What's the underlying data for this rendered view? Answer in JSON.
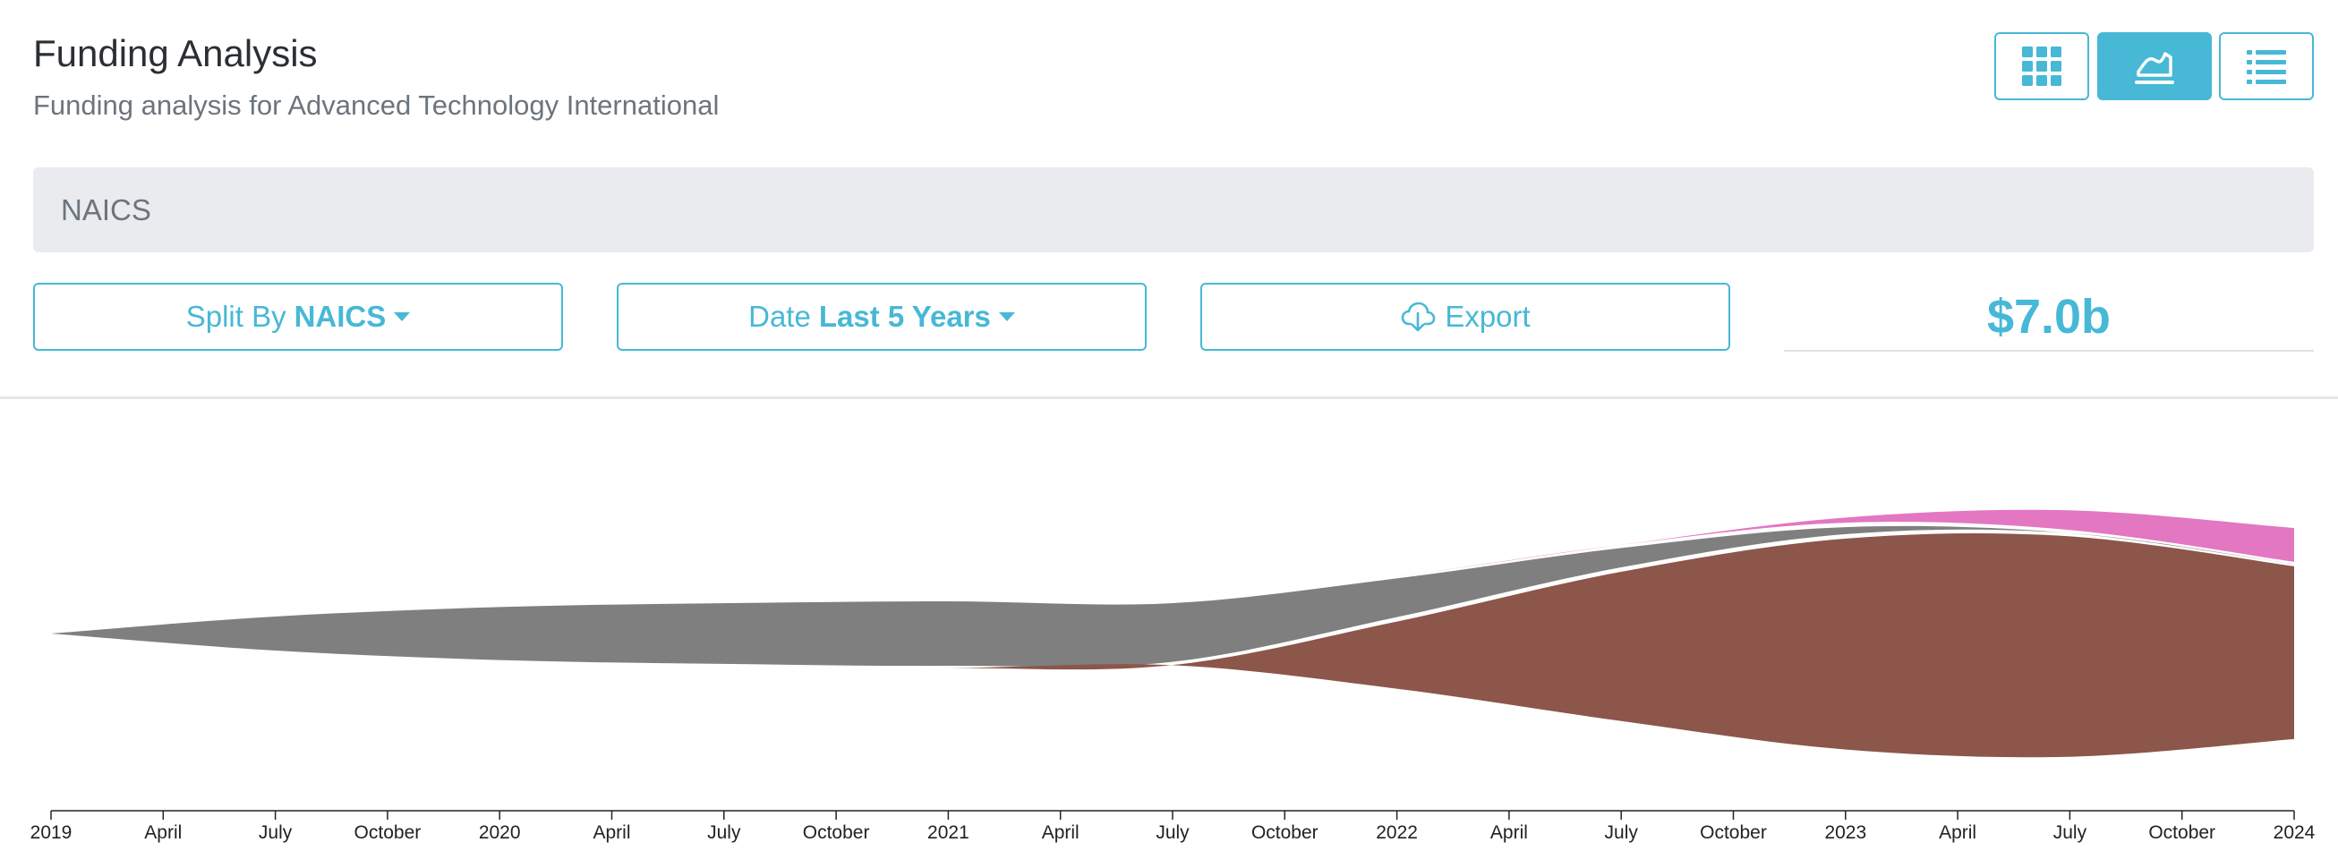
{
  "header": {
    "title": "Funding Analysis",
    "subtitle": "Funding analysis for Advanced Technology International"
  },
  "view_toggle": [
    {
      "name": "grid-view-button",
      "icon": "grid-icon",
      "active": false
    },
    {
      "name": "chart-view-button",
      "icon": "area-chart-icon",
      "active": true
    },
    {
      "name": "list-view-button",
      "icon": "list-icon",
      "active": false
    }
  ],
  "filter": {
    "label": "NAICS"
  },
  "controls": {
    "split_prefix": "Split By",
    "split_value": "NAICS",
    "date_prefix": "Date",
    "date_value": "Last 5 Years",
    "export_label": "Export",
    "export_icon": "cloud-download-icon"
  },
  "total": "$7.0b",
  "colors": {
    "accent": "#47b8d6",
    "series_gray": "#7f7f7f",
    "series_brown": "#8c564b",
    "series_pink": "#e377c2"
  },
  "chart_data": {
    "type": "area",
    "layout": "streamgraph",
    "x_ticks": [
      "2019",
      "April",
      "July",
      "October",
      "2020",
      "April",
      "July",
      "October",
      "2021",
      "April",
      "July",
      "October",
      "2022",
      "April",
      "July",
      "October",
      "2023",
      "April",
      "July",
      "October",
      "2024"
    ],
    "xlim": [
      "2019-01-01",
      "2024-01-01"
    ],
    "x": [
      "2019-01-01",
      "2019-07-01",
      "2020-01-01",
      "2020-07-01",
      "2021-01-01",
      "2021-07-01",
      "2022-01-01",
      "2022-07-01",
      "2023-01-01",
      "2023-07-01",
      "2024-01-01"
    ],
    "series": [
      {
        "color": "#7f7f7f",
        "values": [
          0.01,
          0.4,
          0.6,
          0.68,
          0.72,
          0.66,
          0.45,
          0.25,
          0.12,
          0.02,
          0.0
        ]
      },
      {
        "color": "#8c564b",
        "values": [
          0,
          0,
          0,
          0,
          0,
          0.02,
          0.75,
          1.6,
          2.25,
          2.35,
          1.85
        ]
      },
      {
        "color": "#e377c2",
        "values": [
          0,
          0,
          0,
          0,
          0,
          0,
          0,
          0.02,
          0.1,
          0.25,
          0.4
        ]
      }
    ]
  }
}
